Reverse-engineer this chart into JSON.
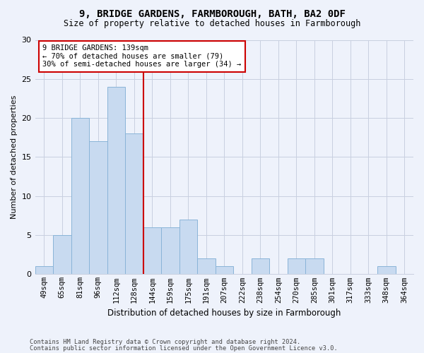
{
  "title1": "9, BRIDGE GARDENS, FARMBOROUGH, BATH, BA2 0DF",
  "title2": "Size of property relative to detached houses in Farmborough",
  "xlabel": "Distribution of detached houses by size in Farmborough",
  "ylabel": "Number of detached properties",
  "footnote1": "Contains HM Land Registry data © Crown copyright and database right 2024.",
  "footnote2": "Contains public sector information licensed under the Open Government Licence v3.0.",
  "categories": [
    "49sqm",
    "65sqm",
    "81sqm",
    "96sqm",
    "112sqm",
    "128sqm",
    "144sqm",
    "159sqm",
    "175sqm",
    "191sqm",
    "207sqm",
    "222sqm",
    "238sqm",
    "254sqm",
    "270sqm",
    "285sqm",
    "301sqm",
    "317sqm",
    "333sqm",
    "348sqm",
    "364sqm"
  ],
  "values": [
    1,
    5,
    20,
    17,
    24,
    18,
    6,
    6,
    7,
    2,
    1,
    0,
    2,
    0,
    2,
    2,
    0,
    0,
    0,
    1,
    0
  ],
  "bar_color": "#c8daf0",
  "bar_edge_color": "#8ab4d8",
  "background_color": "#eef2fb",
  "grid_color": "#c8cfe0",
  "annotation_text": "9 BRIDGE GARDENS: 139sqm\n← 70% of detached houses are smaller (79)\n30% of semi-detached houses are larger (34) →",
  "annotation_box_color": "#ffffff",
  "annotation_box_edge_color": "#cc0000",
  "vline_color": "#cc0000",
  "vline_x_index": 5.5,
  "ylim": [
    0,
    30
  ],
  "yticks": [
    0,
    5,
    10,
    15,
    20,
    25,
    30
  ]
}
